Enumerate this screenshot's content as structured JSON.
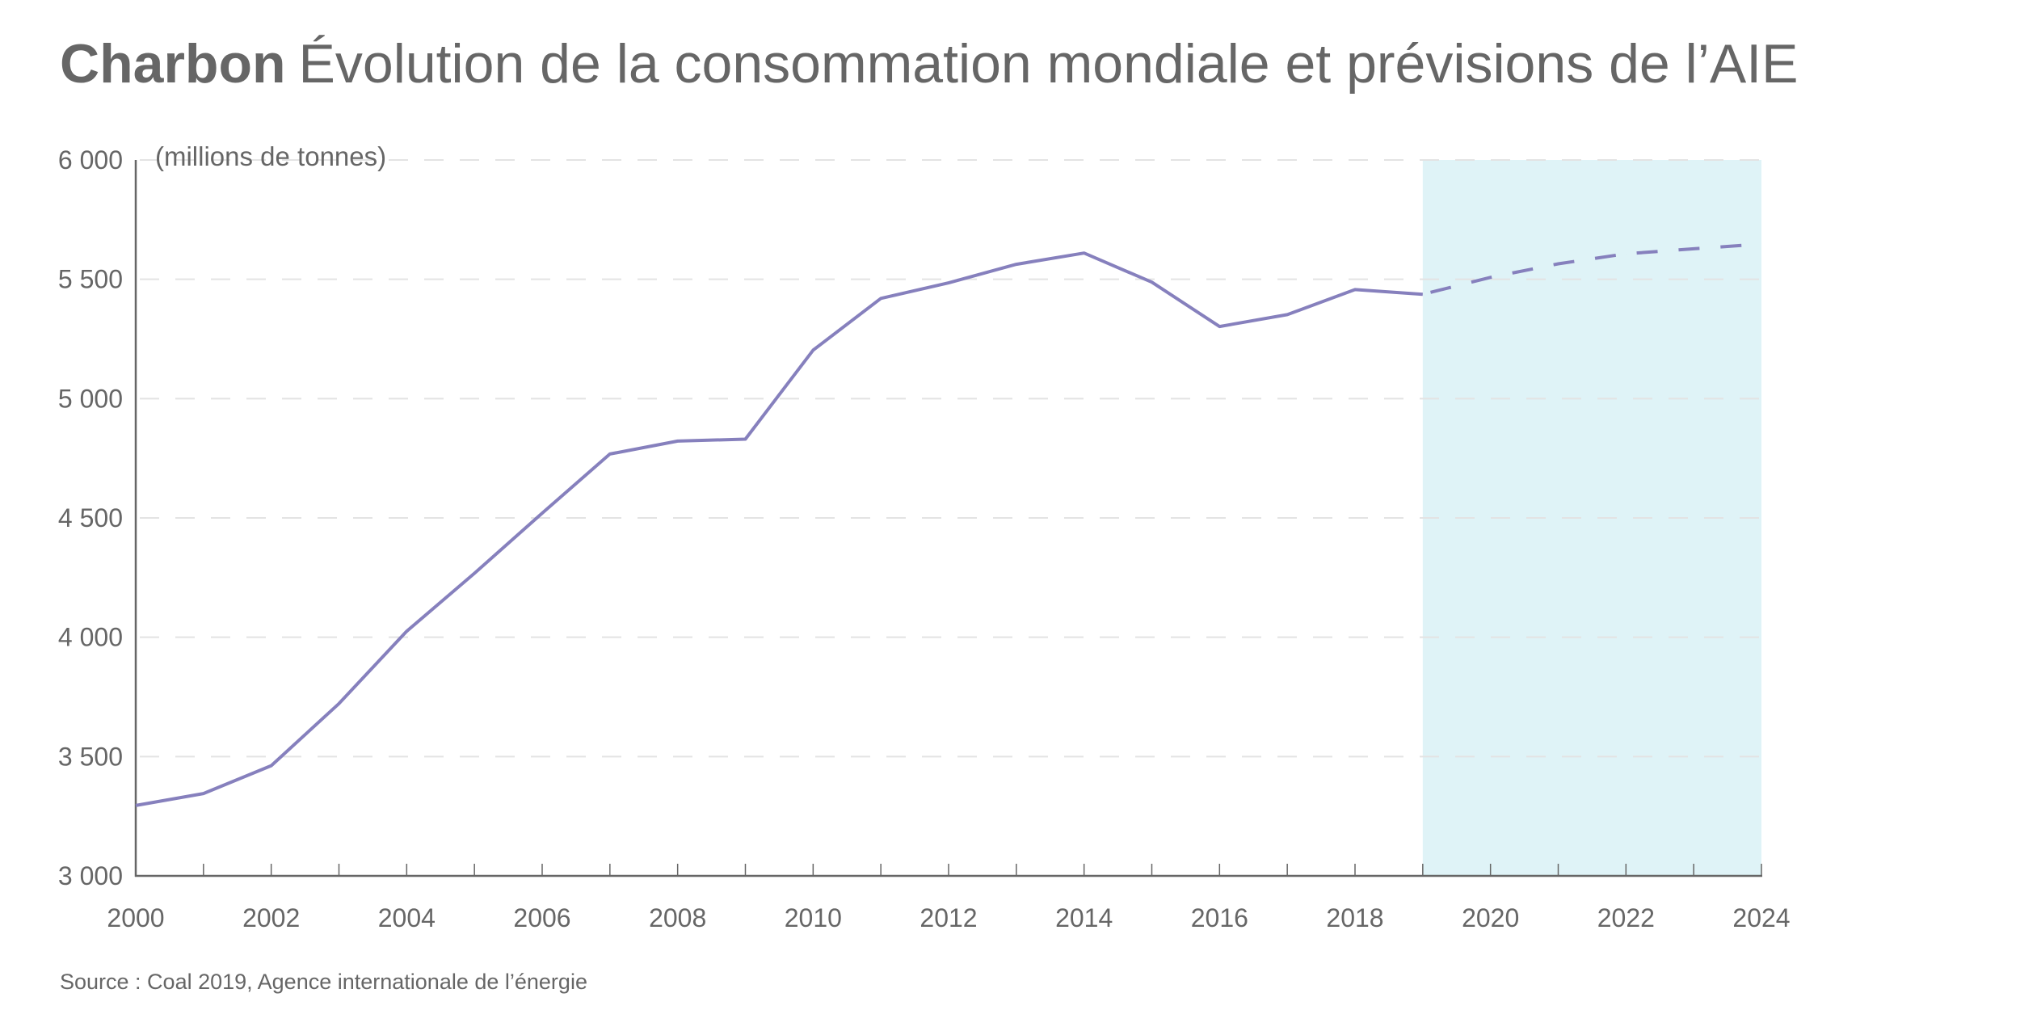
{
  "title": {
    "bold": "Charbon",
    "rest": "Évolution de la consommation mondiale et prévisions de l’AIE"
  },
  "source": "Source : Coal 2019, Agence internationale de l’énergie",
  "colors": {
    "line": "#8680bd",
    "forecast_band": "#dff3f7",
    "axis": "#666666",
    "grid": "#e3e3e3",
    "text": "#666666"
  },
  "chart_data": {
    "type": "line",
    "title": "Charbon Évolution de la consommation mondiale et prévisions de l’AIE",
    "xlabel": "",
    "ylabel": "(millions de tonnes)",
    "xlim": [
      2000,
      2024
    ],
    "ylim": [
      3000,
      6000
    ],
    "grid": true,
    "y_ticks": [
      3000,
      3500,
      4000,
      4500,
      5000,
      5500,
      6000
    ],
    "y_tick_labels": [
      "3 000",
      "3 500",
      "4 000",
      "4 500",
      "5 000",
      "5 500",
      "6 000"
    ],
    "x_ticks": [
      2000,
      2001,
      2002,
      2003,
      2004,
      2005,
      2006,
      2007,
      2008,
      2009,
      2010,
      2011,
      2012,
      2013,
      2014,
      2015,
      2016,
      2017,
      2018,
      2019,
      2020,
      2021,
      2022,
      2023,
      2024
    ],
    "x_tick_labels": [
      "2000",
      "2002",
      "2004",
      "2006",
      "2008",
      "2010",
      "2012",
      "2014",
      "2016",
      "2018",
      "2020",
      "2022",
      "2024"
    ],
    "forecast_region": [
      2019,
      2024
    ],
    "series": [
      {
        "name": "Consommation mondiale",
        "style": "solid",
        "x": [
          2000,
          2001,
          2002,
          2003,
          2004,
          2005,
          2006,
          2007,
          2008,
          2009,
          2010,
          2011,
          2012,
          2013,
          2014,
          2015,
          2016,
          2017,
          2018,
          2019
        ],
        "values": [
          3295,
          3345,
          3462,
          3722,
          4025,
          4268,
          4520,
          4768,
          4822,
          4830,
          5203,
          5420,
          5485,
          5563,
          5610,
          5488,
          5302,
          5352,
          5457,
          5437
        ]
      },
      {
        "name": "Prévisions de l’AIE",
        "style": "dashed",
        "x": [
          2019,
          2020,
          2021,
          2022,
          2023,
          2024
        ],
        "values": [
          5437,
          5508,
          5565,
          5607,
          5628,
          5648
        ]
      }
    ]
  }
}
